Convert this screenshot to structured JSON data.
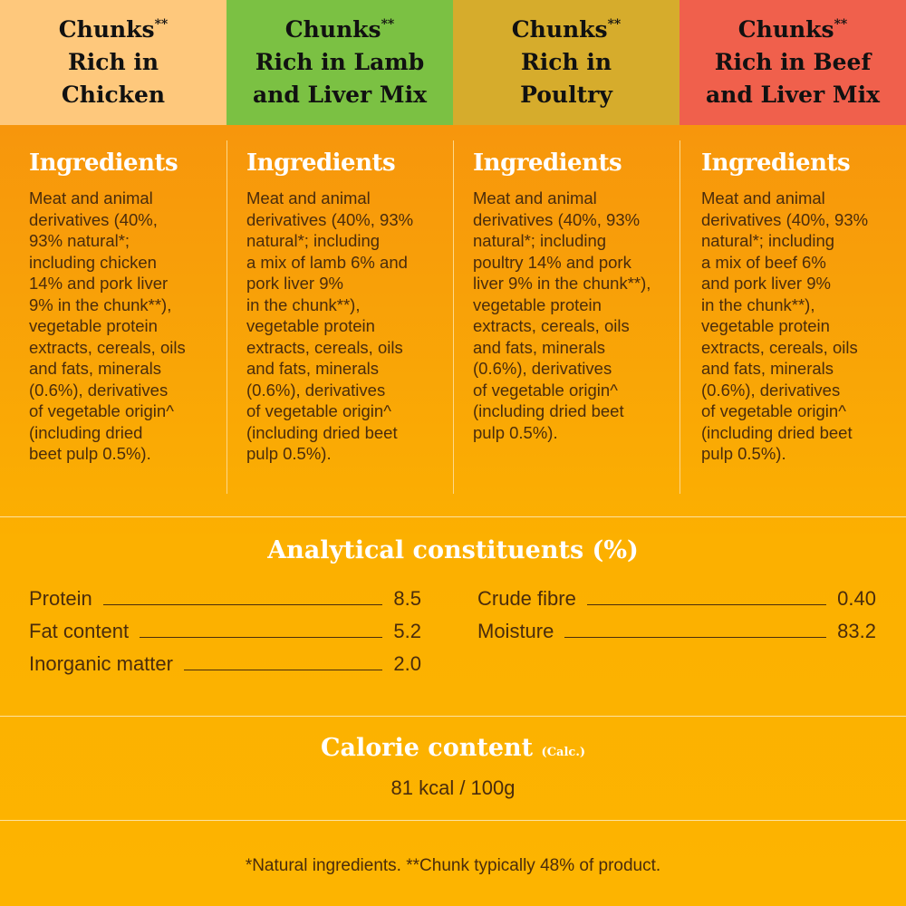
{
  "colors": {
    "chicken": "#fec87c",
    "lamb": "#7bc143",
    "poultry": "#d6ac2c",
    "beef": "#f0604c"
  },
  "products": [
    {
      "title_top": "Chunks",
      "title_sup": "**",
      "title_lines": [
        "Rich in",
        "Chicken"
      ],
      "ingredients_heading": "Ingredients",
      "ingredients_lines": [
        "Meat and animal",
        "derivatives (40%,",
        "93% natural*;",
        "including chicken",
        "14% and pork liver",
        "9% in the chunk**),",
        "vegetable protein",
        "extracts, cereals, oils",
        "and fats, minerals",
        "(0.6%), derivatives",
        "of vegetable origin^",
        "(including dried",
        "beet pulp 0.5%)."
      ]
    },
    {
      "title_top": "Chunks",
      "title_sup": "**",
      "title_lines": [
        "Rich  in Lamb",
        "and Liver Mix"
      ],
      "ingredients_heading": "Ingredients",
      "ingredients_lines": [
        "Meat and animal",
        "derivatives (40%, 93%",
        "natural*; including",
        "a mix of lamb 6% and",
        "pork liver 9%",
        "in the chunk**),",
        "vegetable protein",
        "extracts, cereals, oils",
        "and fats, minerals",
        "(0.6%), derivatives",
        "of vegetable origin^",
        "(including dried beet",
        "pulp 0.5%)."
      ]
    },
    {
      "title_top": "Chunks",
      "title_sup": "**",
      "title_lines": [
        "Rich in",
        "Poultry"
      ],
      "ingredients_heading": "Ingredients",
      "ingredients_lines": [
        "Meat and animal",
        "derivatives (40%, 93%",
        "natural*; including",
        "poultry 14% and pork",
        "liver 9% in the chunk**),",
        "vegetable protein",
        "extracts, cereals, oils",
        "and fats, minerals",
        "(0.6%), derivatives",
        "of vegetable origin^",
        "(including dried beet",
        "pulp 0.5%)."
      ]
    },
    {
      "title_top": "Chunks",
      "title_sup": "**",
      "title_lines": [
        "Rich in Beef",
        "and Liver Mix"
      ],
      "ingredients_heading": "Ingredients",
      "ingredients_lines": [
        "Meat and animal",
        "derivatives (40%, 93%",
        "natural*; including",
        "a mix of beef 6%",
        "and pork liver 9%",
        "in the chunk**),",
        "vegetable protein",
        "extracts, cereals, oils",
        "and fats, minerals",
        "(0.6%), derivatives",
        "of vegetable origin^",
        "(including dried beet",
        "pulp 0.5%)."
      ]
    }
  ],
  "analytical": {
    "title": "Analytical constituents (%)",
    "left": [
      {
        "label": "Protein",
        "value": "8.5"
      },
      {
        "label": "Fat content",
        "value": "5.2"
      },
      {
        "label": "Inorganic matter",
        "value": "2.0"
      }
    ],
    "right": [
      {
        "label": "Crude fibre",
        "value": "0.40"
      },
      {
        "label": "Moisture",
        "value": "83.2"
      }
    ]
  },
  "calorie": {
    "title": "Calorie content",
    "title_note": "(Calc.)",
    "value": "81 kcal / 100g"
  },
  "footnote": "*Natural ingredients. **Chunk typically 48% of product."
}
